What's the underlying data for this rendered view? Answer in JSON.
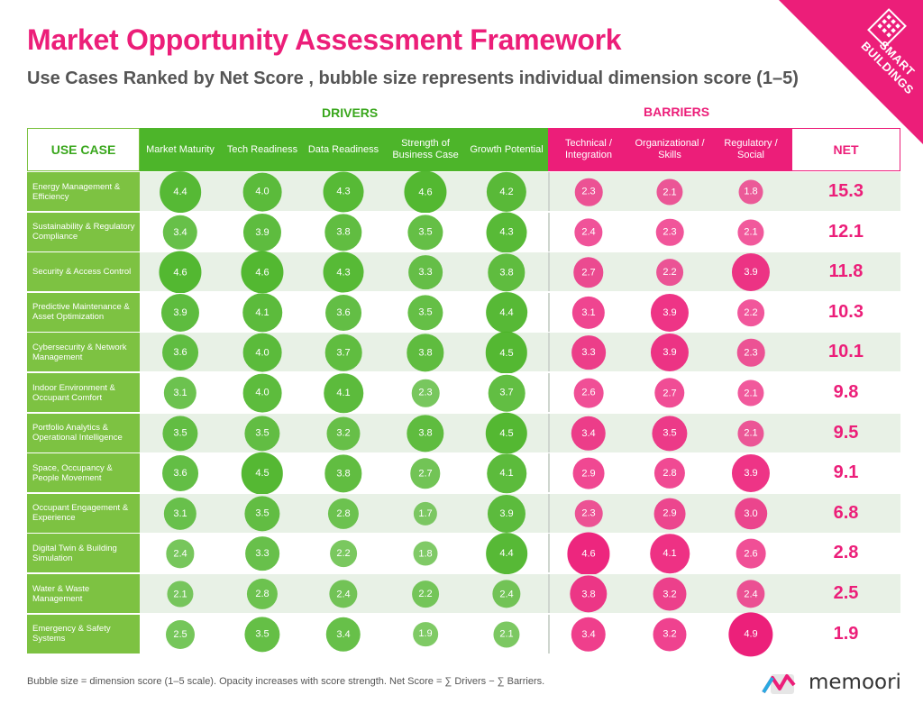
{
  "title": "Market Opportunity Assessment Framework",
  "subtitle": "Use Cases Ranked by Net Score , bubble size represents individual dimension score (1–5)",
  "corner_badge": "SMART BUILDINGS",
  "drivers_label": "DRIVERS",
  "barriers_label": "BARRIERS",
  "footnote": "Bubble size = dimension score (1–5 scale). Opacity increases with score strength. Net Score = ∑ Drivers − ∑ Barriers.",
  "logo_text": "memoori",
  "colors": {
    "driver": "#4db52a",
    "barrier": "#ec1e79",
    "usecase_bg": "#7dc242",
    "row_alt": "#e8f1e6"
  },
  "chart_data": {
    "type": "table",
    "header_usecase": "USE CASE",
    "header_net": "NET",
    "driver_columns": [
      "Market Maturity",
      "Tech Readiness",
      "Data Readiness",
      "Strength of Business Case",
      "Growth Potential"
    ],
    "barrier_columns": [
      "Technical / Integration",
      "Organizational / Skills",
      "Regulatory / Social"
    ],
    "rows": [
      {
        "use_case": "Energy Management & Efficiency",
        "drivers": [
          4.4,
          4.0,
          4.3,
          4.6,
          4.2
        ],
        "barriers": [
          2.3,
          2.1,
          1.8
        ],
        "net": "15.3"
      },
      {
        "use_case": "Sustainability & Regulatory Compliance",
        "drivers": [
          3.4,
          3.9,
          3.8,
          3.5,
          4.3
        ],
        "barriers": [
          2.4,
          2.3,
          2.1
        ],
        "net": "12.1"
      },
      {
        "use_case": "Security & Access Control",
        "drivers": [
          4.6,
          4.6,
          4.3,
          3.3,
          3.8
        ],
        "barriers": [
          2.7,
          2.2,
          3.9
        ],
        "net": "11.8"
      },
      {
        "use_case": "Predictive Maintenance & Asset Optimization",
        "drivers": [
          3.9,
          4.1,
          3.6,
          3.5,
          4.4
        ],
        "barriers": [
          3.1,
          3.9,
          2.2
        ],
        "net": "10.3"
      },
      {
        "use_case": "Cybersecurity & Network Management",
        "drivers": [
          3.6,
          4.0,
          3.7,
          3.8,
          4.5
        ],
        "barriers": [
          3.3,
          3.9,
          2.3
        ],
        "net": "10.1"
      },
      {
        "use_case": "Indoor Environment & Occupant Comfort",
        "drivers": [
          3.1,
          4.0,
          4.1,
          2.3,
          3.7
        ],
        "barriers": [
          2.6,
          2.7,
          2.1
        ],
        "net": "9.8"
      },
      {
        "use_case": "Portfolio Analytics & Operational Intelligence",
        "drivers": [
          3.5,
          3.5,
          3.2,
          3.8,
          4.5
        ],
        "barriers": [
          3.4,
          3.5,
          2.1
        ],
        "net": "9.5"
      },
      {
        "use_case": "Space, Occupancy & People Movement",
        "drivers": [
          3.6,
          4.5,
          3.8,
          2.7,
          4.1
        ],
        "barriers": [
          2.9,
          2.8,
          3.9
        ],
        "net": "9.1"
      },
      {
        "use_case": "Occupant Engagement & Experience",
        "drivers": [
          3.1,
          3.5,
          2.8,
          1.7,
          3.9
        ],
        "barriers": [
          2.3,
          2.9,
          3.0
        ],
        "net": "6.8"
      },
      {
        "use_case": "Digital Twin & Building Simulation",
        "drivers": [
          2.4,
          3.3,
          2.2,
          1.8,
          4.4
        ],
        "barriers": [
          4.6,
          4.1,
          2.6
        ],
        "net": "2.8"
      },
      {
        "use_case": "Water & Waste Management",
        "drivers": [
          2.1,
          2.8,
          2.4,
          2.2,
          2.4
        ],
        "barriers": [
          3.8,
          3.2,
          2.4
        ],
        "net": "2.5"
      },
      {
        "use_case": "Emergency & Safety Systems",
        "drivers": [
          2.5,
          3.5,
          3.4,
          1.9,
          2.1
        ],
        "barriers": [
          3.4,
          3.2,
          4.9
        ],
        "net": "1.9"
      }
    ]
  }
}
